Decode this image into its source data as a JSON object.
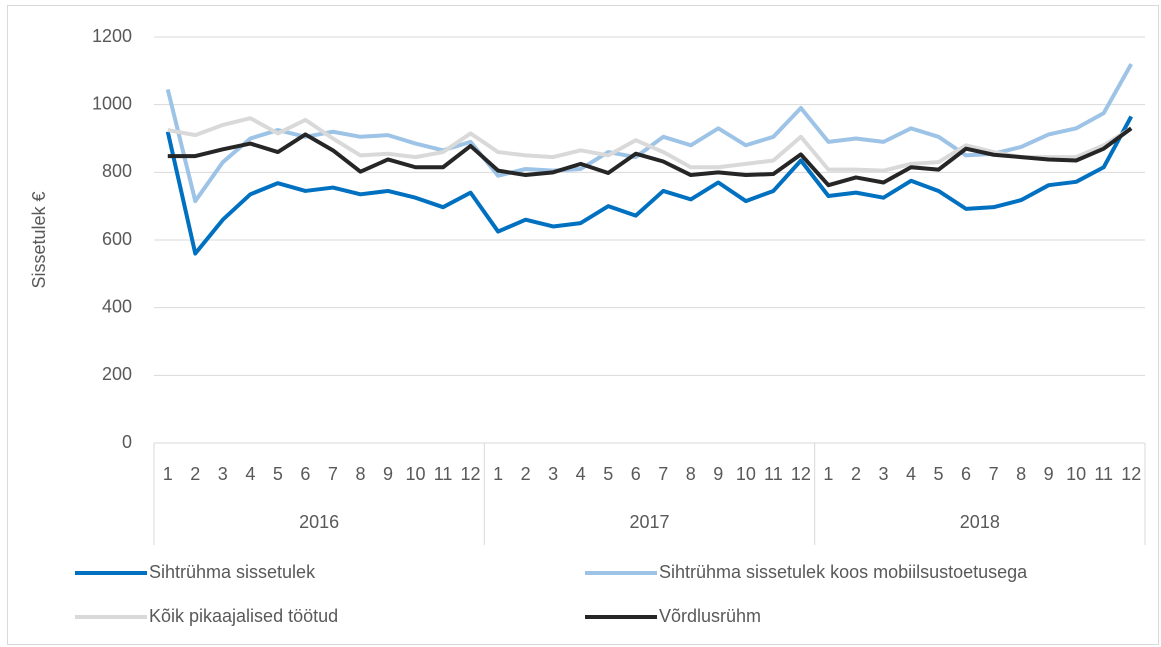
{
  "chart_data": {
    "type": "line",
    "y_label": "Sissetulek €",
    "categories": [
      "1",
      "2",
      "3",
      "4",
      "5",
      "6",
      "7",
      "8",
      "9",
      "10",
      "11",
      "12",
      "1",
      "2",
      "3",
      "4",
      "5",
      "6",
      "7",
      "8",
      "9",
      "10",
      "11",
      "12",
      "1",
      "2",
      "3",
      "4",
      "5",
      "6",
      "7",
      "8",
      "9",
      "10",
      "11",
      "12"
    ],
    "groups": [
      "2016",
      "2017",
      "2018"
    ],
    "ylim": [
      0,
      1200
    ],
    "yticks": [
      0,
      200,
      400,
      600,
      800,
      1000,
      1200
    ],
    "grid": true,
    "legend": "bottom",
    "series": [
      {
        "name": "Sihtrühma sissetulek",
        "color": "#0070c0",
        "values": [
          920,
          560,
          660,
          735,
          768,
          745,
          755,
          735,
          745,
          725,
          697,
          740,
          625,
          660,
          640,
          650,
          700,
          672,
          745,
          720,
          770,
          715,
          745,
          835,
          730,
          740,
          725,
          775,
          745,
          692,
          697,
          718,
          762,
          772,
          815,
          965
        ]
      },
      {
        "name": "Sihtrühma sissetulek koos mobiilsustoetusega",
        "color": "#9dc3e6",
        "values": [
          1045,
          715,
          830,
          900,
          925,
          905,
          920,
          905,
          910,
          885,
          865,
          890,
          790,
          810,
          805,
          810,
          860,
          845,
          905,
          880,
          930,
          880,
          905,
          990,
          890,
          900,
          890,
          930,
          905,
          850,
          855,
          875,
          912,
          930,
          975,
          1120
        ]
      },
      {
        "name": "Kõik pikaajalised töötud",
        "color": "#d9d9d9",
        "values": [
          925,
          910,
          940,
          960,
          915,
          955,
          900,
          850,
          855,
          845,
          860,
          915,
          860,
          850,
          845,
          865,
          850,
          895,
          860,
          815,
          815,
          825,
          835,
          905,
          808,
          808,
          805,
          825,
          830,
          880,
          860,
          845,
          845,
          845,
          880,
          930
        ]
      },
      {
        "name": "Võrdlusrühm",
        "color": "#262626",
        "values": [
          848,
          848,
          868,
          885,
          860,
          912,
          865,
          802,
          838,
          815,
          815,
          878,
          805,
          792,
          800,
          825,
          798,
          855,
          832,
          792,
          800,
          792,
          795,
          853,
          762,
          785,
          770,
          815,
          808,
          870,
          852,
          845,
          838,
          835,
          870,
          930
        ]
      }
    ]
  }
}
